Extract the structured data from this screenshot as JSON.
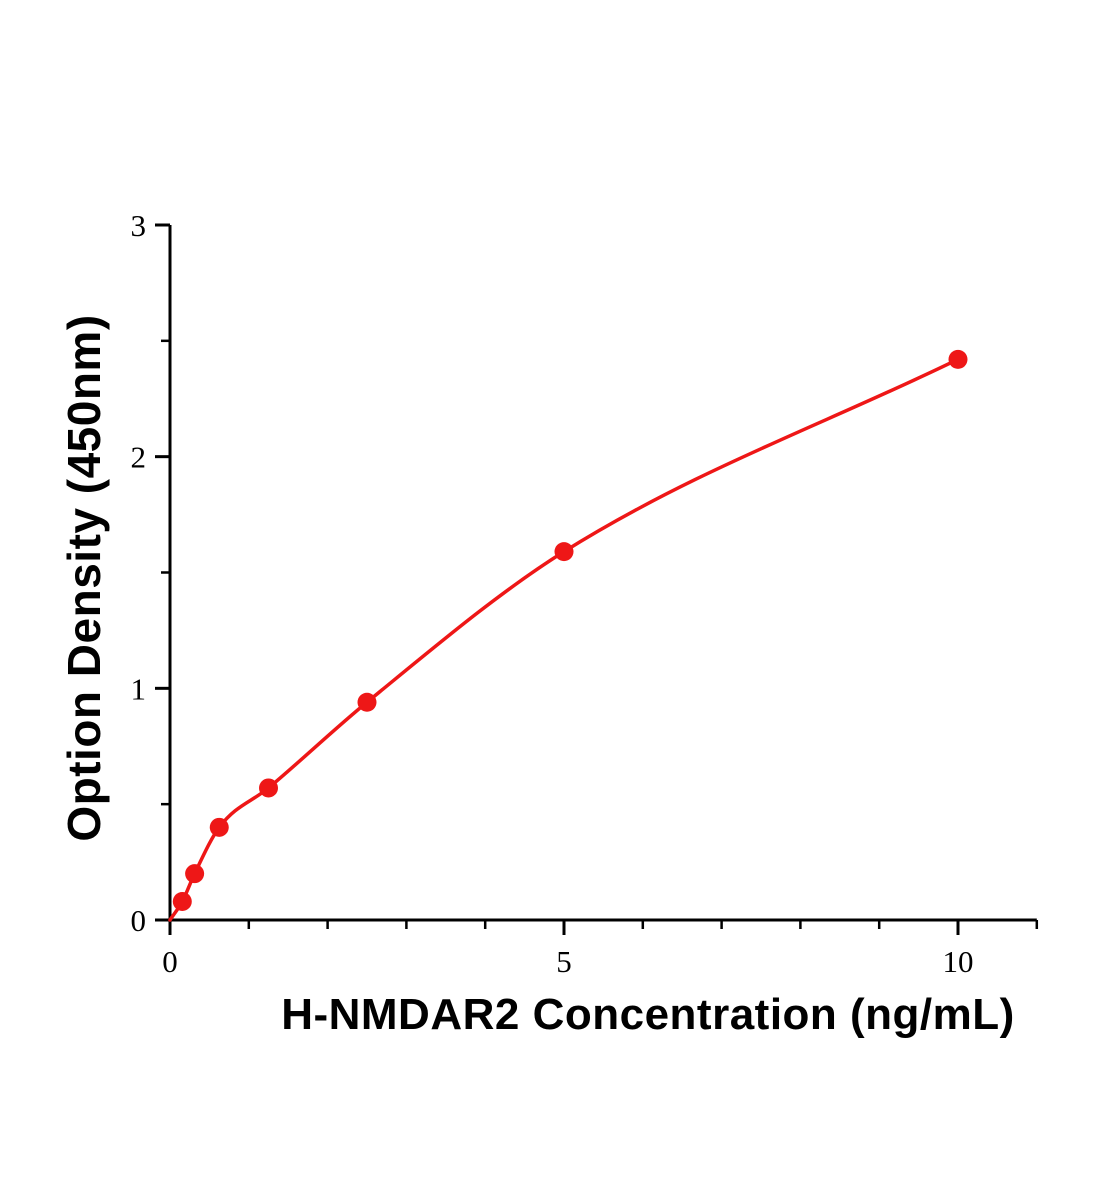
{
  "chart_data": {
    "type": "scatter",
    "title": "",
    "xlabel": "H-NMDAR2 Concentration (ng/mL)",
    "ylabel": "Option Density (450nm)",
    "x": [
      0.156,
      0.3125,
      0.625,
      1.25,
      2.5,
      5,
      10
    ],
    "y": [
      0.08,
      0.2,
      0.4,
      0.57,
      0.94,
      1.59,
      2.42
    ],
    "fit_curve": "saturating curve through points starting at origin",
    "xlim": [
      0,
      11
    ],
    "ylim": [
      0,
      3
    ],
    "x_ticks": [
      0,
      5,
      10
    ],
    "x_minor_ticks": [
      1,
      2,
      3,
      4,
      6,
      7,
      8,
      9,
      11
    ],
    "y_ticks": [
      0,
      1,
      2,
      3
    ],
    "y_minor_ticks": [
      0.5,
      1.5,
      2.5
    ],
    "grid": "off",
    "legend": "none",
    "point_color": "#ee1717",
    "line_color": "#ee1717",
    "axis_color": "#000000"
  }
}
